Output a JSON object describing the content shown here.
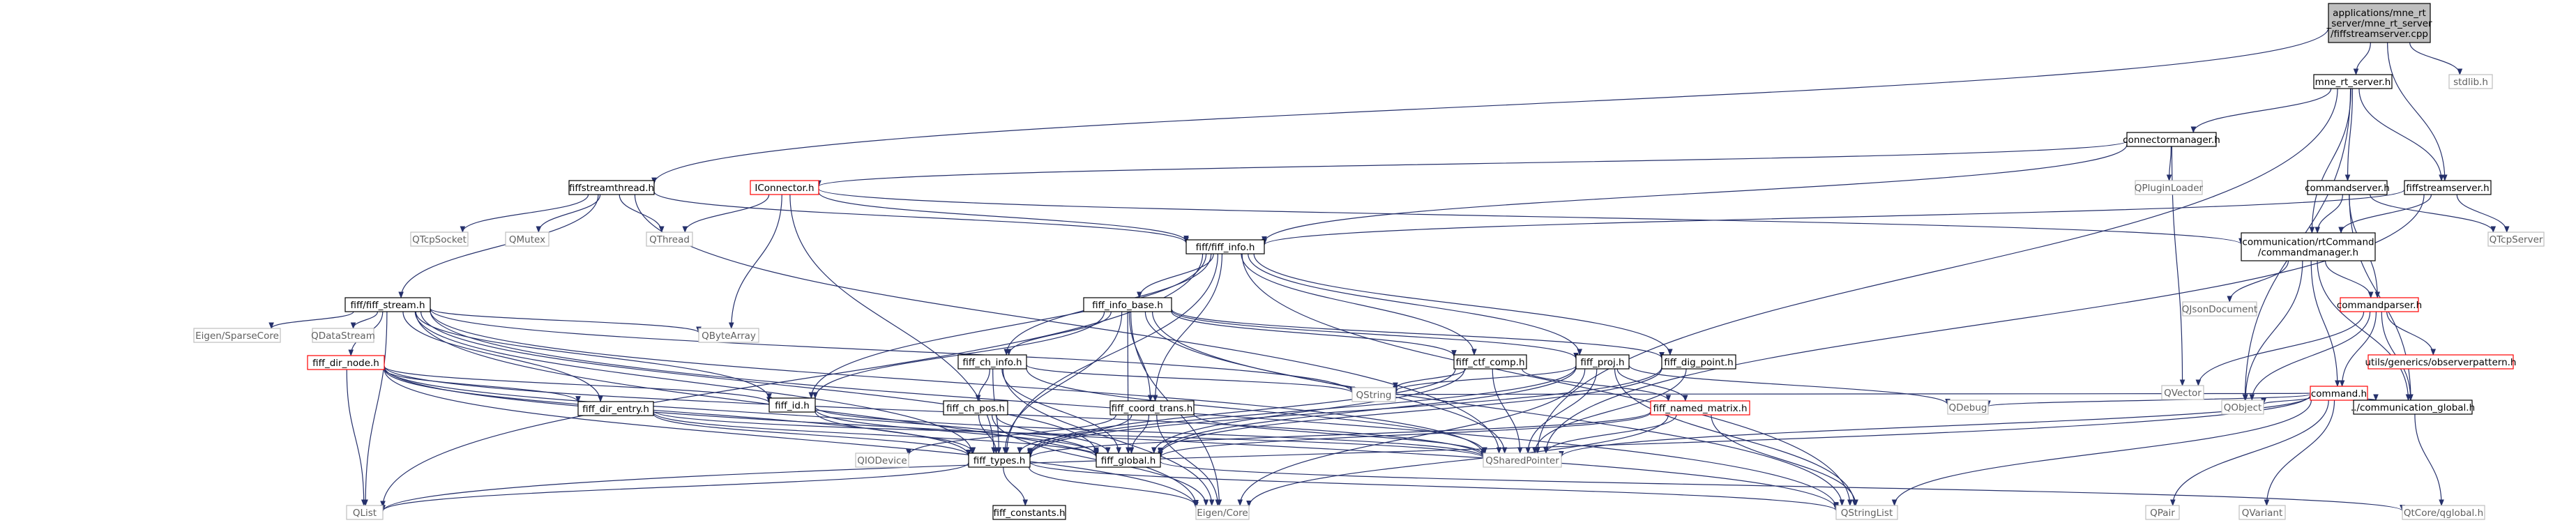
{
  "graph": {
    "nodes": [
      {
        "id": "root",
        "lines": [
          "applications/mne_rt",
          "_server/mne_rt_server",
          "/fiffstreamserver.cpp"
        ],
        "kind": "root"
      },
      {
        "id": "mne_rt_server",
        "lines": [
          "mne_rt_server.h"
        ],
        "kind": "normal"
      },
      {
        "id": "stdlib",
        "lines": [
          "stdlib.h"
        ],
        "kind": "external"
      },
      {
        "id": "connectormanager",
        "lines": [
          "connectormanager.h"
        ],
        "kind": "normal"
      },
      {
        "id": "fiffstreamthread",
        "lines": [
          "fiffstreamthread.h"
        ],
        "kind": "normal"
      },
      {
        "id": "iconnector",
        "lines": [
          "IConnector.h"
        ],
        "kind": "truncated"
      },
      {
        "id": "qpluginloader",
        "lines": [
          "QPluginLoader"
        ],
        "kind": "external"
      },
      {
        "id": "commandserver",
        "lines": [
          "commandserver.h"
        ],
        "kind": "normal"
      },
      {
        "id": "fiffstreamserver",
        "lines": [
          "fiffstreamserver.h"
        ],
        "kind": "normal"
      },
      {
        "id": "qtcpsocket",
        "lines": [
          "QTcpSocket"
        ],
        "kind": "external"
      },
      {
        "id": "qmutex",
        "lines": [
          "QMutex"
        ],
        "kind": "external"
      },
      {
        "id": "qthread",
        "lines": [
          "QThread"
        ],
        "kind": "external"
      },
      {
        "id": "fiff_info",
        "lines": [
          "fiff/fiff_info.h"
        ],
        "kind": "normal"
      },
      {
        "id": "commandmanager",
        "lines": [
          "communication/rtCommand",
          "/commandmanager.h"
        ],
        "kind": "normal"
      },
      {
        "id": "qtcpserver",
        "lines": [
          "QTcpServer"
        ],
        "kind": "external"
      },
      {
        "id": "fiff_stream",
        "lines": [
          "fiff/fiff_stream.h"
        ],
        "kind": "normal"
      },
      {
        "id": "fiff_info_base",
        "lines": [
          "fiff_info_base.h"
        ],
        "kind": "normal"
      },
      {
        "id": "qjsondocument",
        "lines": [
          "QJsonDocument"
        ],
        "kind": "external"
      },
      {
        "id": "commandparser",
        "lines": [
          "commandparser.h"
        ],
        "kind": "truncated"
      },
      {
        "id": "eigensparse",
        "lines": [
          "Eigen/SparseCore"
        ],
        "kind": "external"
      },
      {
        "id": "qdatastream",
        "lines": [
          "QDataStream"
        ],
        "kind": "external"
      },
      {
        "id": "qbytearray",
        "lines": [
          "QByteArray"
        ],
        "kind": "external"
      },
      {
        "id": "fiff_dir_node",
        "lines": [
          "fiff_dir_node.h"
        ],
        "kind": "truncated"
      },
      {
        "id": "fiff_ch_info",
        "lines": [
          "fiff_ch_info.h"
        ],
        "kind": "normal"
      },
      {
        "id": "fiff_ctf_comp",
        "lines": [
          "fiff_ctf_comp.h"
        ],
        "kind": "normal"
      },
      {
        "id": "fiff_proj",
        "lines": [
          "fiff_proj.h"
        ],
        "kind": "normal"
      },
      {
        "id": "fiff_dig_point",
        "lines": [
          "fiff_dig_point.h"
        ],
        "kind": "normal"
      },
      {
        "id": "utils_observer",
        "lines": [
          "utils/generics/observerpattern.h"
        ],
        "kind": "truncated"
      },
      {
        "id": "qvector",
        "lines": [
          "QVector"
        ],
        "kind": "external"
      },
      {
        "id": "command",
        "lines": [
          "command.h"
        ],
        "kind": "truncated"
      },
      {
        "id": "qstring",
        "lines": [
          "QString"
        ],
        "kind": "external"
      },
      {
        "id": "fiff_id",
        "lines": [
          "fiff_id.h"
        ],
        "kind": "normal"
      },
      {
        "id": "fiff_dir_entry",
        "lines": [
          "fiff_dir_entry.h"
        ],
        "kind": "normal"
      },
      {
        "id": "fiff_ch_pos",
        "lines": [
          "fiff_ch_pos.h"
        ],
        "kind": "normal"
      },
      {
        "id": "fiff_coord_trans",
        "lines": [
          "fiff_coord_trans.h"
        ],
        "kind": "normal"
      },
      {
        "id": "fiff_named_matrix",
        "lines": [
          "fiff_named_matrix.h"
        ],
        "kind": "truncated"
      },
      {
        "id": "qdebug",
        "lines": [
          "QDebug"
        ],
        "kind": "external"
      },
      {
        "id": "qobject",
        "lines": [
          "QObject"
        ],
        "kind": "external"
      },
      {
        "id": "communication_global",
        "lines": [
          "../communication_global.h"
        ],
        "kind": "normal"
      },
      {
        "id": "qiodevice",
        "lines": [
          "QIODevice"
        ],
        "kind": "external"
      },
      {
        "id": "fiff_global",
        "lines": [
          "fiff_global.h"
        ],
        "kind": "normal"
      },
      {
        "id": "qsharedpointer",
        "lines": [
          "QSharedPointer"
        ],
        "kind": "external"
      },
      {
        "id": "fiff_types",
        "lines": [
          "fiff_types.h"
        ],
        "kind": "normal"
      },
      {
        "id": "qlist",
        "lines": [
          "QList"
        ],
        "kind": "external"
      },
      {
        "id": "fiff_constants",
        "lines": [
          "fiff_constants.h"
        ],
        "kind": "normal"
      },
      {
        "id": "eigencore",
        "lines": [
          "Eigen/Core"
        ],
        "kind": "external"
      },
      {
        "id": "qstringlist",
        "lines": [
          "QStringList"
        ],
        "kind": "external"
      },
      {
        "id": "qpair",
        "lines": [
          "QPair"
        ],
        "kind": "external"
      },
      {
        "id": "qvariant",
        "lines": [
          "QVariant"
        ],
        "kind": "external"
      },
      {
        "id": "qtcore_global",
        "lines": [
          "QtCore/qglobal.h"
        ],
        "kind": "external"
      }
    ],
    "edges": [
      [
        "root",
        "mne_rt_server"
      ],
      [
        "root",
        "stdlib"
      ],
      [
        "root",
        "fiffstreamthread"
      ],
      [
        "root",
        "fiffstreamserver"
      ],
      [
        "mne_rt_server",
        "connectormanager"
      ],
      [
        "mne_rt_server",
        "commandserver"
      ],
      [
        "mne_rt_server",
        "fiffstreamserver"
      ],
      [
        "mne_rt_server",
        "commandmanager"
      ],
      [
        "mne_rt_server",
        "qobject"
      ],
      [
        "mne_rt_server",
        "qsharedpointer"
      ],
      [
        "connectormanager",
        "iconnector"
      ],
      [
        "connectormanager",
        "qpluginloader"
      ],
      [
        "connectormanager",
        "qvector"
      ],
      [
        "connectormanager",
        "fiff_info"
      ],
      [
        "fiffstreamthread",
        "qtcpsocket"
      ],
      [
        "fiffstreamthread",
        "qmutex"
      ],
      [
        "fiffstreamthread",
        "qthread"
      ],
      [
        "fiffstreamthread",
        "fiff_info"
      ],
      [
        "fiffstreamthread",
        "fiff_stream"
      ],
      [
        "fiffstreamthread",
        "qsharedpointer"
      ],
      [
        "iconnector",
        "qthread"
      ],
      [
        "iconnector",
        "fiff_info"
      ],
      [
        "iconnector",
        "commandmanager"
      ],
      [
        "iconnector",
        "qbytearray"
      ],
      [
        "iconnector",
        "fiff_types"
      ],
      [
        "commandserver",
        "commandmanager"
      ],
      [
        "commandserver",
        "commandparser"
      ],
      [
        "commandserver",
        "qtcpserver"
      ],
      [
        "commandserver",
        "communication_global"
      ],
      [
        "fiffstreamserver",
        "fiff_info"
      ],
      [
        "fiffstreamserver",
        "commandmanager"
      ],
      [
        "fiffstreamserver",
        "qtcpserver"
      ],
      [
        "fiffstreamserver",
        "qsharedpointer"
      ],
      [
        "fiff_info",
        "fiff_info_base"
      ],
      [
        "fiff_info",
        "fiff_ch_info"
      ],
      [
        "fiff_info",
        "fiff_ctf_comp"
      ],
      [
        "fiff_info",
        "fiff_proj"
      ],
      [
        "fiff_info",
        "fiff_dig_point"
      ],
      [
        "fiff_info",
        "fiff_coord_trans"
      ],
      [
        "fiff_info",
        "fiff_id"
      ],
      [
        "fiff_info",
        "fiff_types"
      ],
      [
        "fiff_info",
        "qlist"
      ],
      [
        "fiff_info",
        "qstringlist"
      ],
      [
        "commandmanager",
        "qjsondocument"
      ],
      [
        "commandmanager",
        "commandparser"
      ],
      [
        "commandmanager",
        "command"
      ],
      [
        "commandmanager",
        "qobject"
      ],
      [
        "commandmanager",
        "communication_global"
      ],
      [
        "fiff_stream",
        "eigensparse"
      ],
      [
        "fiff_stream",
        "qdatastream"
      ],
      [
        "fiff_stream",
        "qbytearray"
      ],
      [
        "fiff_stream",
        "fiff_dir_node"
      ],
      [
        "fiff_stream",
        "fiff_dir_entry"
      ],
      [
        "fiff_stream",
        "fiff_id"
      ],
      [
        "fiff_stream",
        "fiff_types"
      ],
      [
        "fiff_stream",
        "qstring"
      ],
      [
        "fiff_stream",
        "qlist"
      ],
      [
        "fiff_stream",
        "qstringlist"
      ],
      [
        "fiff_stream",
        "eigencore"
      ],
      [
        "fiff_stream",
        "fiff_global"
      ],
      [
        "fiff_stream",
        "qsharedpointer"
      ],
      [
        "fiff_info_base",
        "fiff_ch_info"
      ],
      [
        "fiff_info_base",
        "fiff_ctf_comp"
      ],
      [
        "fiff_info_base",
        "fiff_proj"
      ],
      [
        "fiff_info_base",
        "fiff_dig_point"
      ],
      [
        "fiff_info_base",
        "fiff_coord_trans"
      ],
      [
        "fiff_info_base",
        "fiff_id"
      ],
      [
        "fiff_info_base",
        "fiff_types"
      ],
      [
        "fiff_info_base",
        "fiff_global"
      ],
      [
        "fiff_info_base",
        "qsharedpointer"
      ],
      [
        "fiff_info_base",
        "eigencore"
      ],
      [
        "fiff_info_base",
        "qstringlist"
      ],
      [
        "commandparser",
        "utils_observer"
      ],
      [
        "commandparser",
        "qvector"
      ],
      [
        "commandparser",
        "command"
      ],
      [
        "commandparser",
        "qobject"
      ],
      [
        "commandparser",
        "communication_global"
      ],
      [
        "fiff_dir_node",
        "fiff_dir_entry"
      ],
      [
        "fiff_dir_node",
        "fiff_id"
      ],
      [
        "fiff_dir_node",
        "fiff_types"
      ],
      [
        "fiff_dir_node",
        "fiff_global"
      ],
      [
        "fiff_dir_node",
        "qlist"
      ],
      [
        "fiff_dir_node",
        "qsharedpointer"
      ],
      [
        "fiff_dir_node",
        "eigencore"
      ],
      [
        "fiff_dir_node",
        "qstringlist"
      ],
      [
        "fiff_ch_info",
        "fiff_ch_pos"
      ],
      [
        "fiff_ch_info",
        "fiff_types"
      ],
      [
        "fiff_ch_info",
        "fiff_global"
      ],
      [
        "fiff_ch_info",
        "qstring"
      ],
      [
        "fiff_ch_info",
        "qsharedpointer"
      ],
      [
        "fiff_ch_info",
        "eigencore"
      ],
      [
        "fiff_ctf_comp",
        "fiff_named_matrix"
      ],
      [
        "fiff_ctf_comp",
        "fiff_types"
      ],
      [
        "fiff_ctf_comp",
        "fiff_global"
      ],
      [
        "fiff_ctf_comp",
        "qsharedpointer"
      ],
      [
        "fiff_ctf_comp",
        "qstring"
      ],
      [
        "fiff_proj",
        "fiff_named_matrix"
      ],
      [
        "fiff_proj",
        "fiff_types"
      ],
      [
        "fiff_proj",
        "fiff_global"
      ],
      [
        "fiff_proj",
        "qstring"
      ],
      [
        "fiff_proj",
        "qsharedpointer"
      ],
      [
        "fiff_proj",
        "eigencore"
      ],
      [
        "fiff_proj",
        "qdebug"
      ],
      [
        "fiff_proj",
        "qstringlist"
      ],
      [
        "fiff_dig_point",
        "fiff_types"
      ],
      [
        "fiff_dig_point",
        "fiff_global"
      ],
      [
        "fiff_dig_point",
        "qsharedpointer"
      ],
      [
        "command",
        "qdebug"
      ],
      [
        "command",
        "qobject"
      ],
      [
        "command",
        "communication_global"
      ],
      [
        "command",
        "qsharedpointer"
      ],
      [
        "command",
        "qstring"
      ],
      [
        "command",
        "qstringlist"
      ],
      [
        "command",
        "qpair"
      ],
      [
        "command",
        "qvariant"
      ],
      [
        "command",
        "qlist"
      ],
      [
        "fiff_id",
        "fiff_types"
      ],
      [
        "fiff_id",
        "fiff_global"
      ],
      [
        "fiff_id",
        "qsharedpointer"
      ],
      [
        "fiff_dir_entry",
        "fiff_types"
      ],
      [
        "fiff_dir_entry",
        "fiff_global"
      ],
      [
        "fiff_dir_entry",
        "qsharedpointer"
      ],
      [
        "fiff_ch_pos",
        "fiff_types"
      ],
      [
        "fiff_ch_pos",
        "fiff_global"
      ],
      [
        "fiff_ch_pos",
        "eigencore"
      ],
      [
        "fiff_coord_trans",
        "fiff_types"
      ],
      [
        "fiff_coord_trans",
        "fiff_global"
      ],
      [
        "fiff_coord_trans",
        "eigencore"
      ],
      [
        "fiff_coord_trans",
        "qiodevice"
      ],
      [
        "fiff_coord_trans",
        "qsharedpointer"
      ],
      [
        "fiff_named_matrix",
        "fiff_types"
      ],
      [
        "fiff_named_matrix",
        "fiff_global"
      ],
      [
        "fiff_named_matrix",
        "qstringlist"
      ],
      [
        "fiff_named_matrix",
        "qsharedpointer"
      ],
      [
        "fiff_named_matrix",
        "eigencore"
      ],
      [
        "communication_global",
        "qtcore_global"
      ],
      [
        "fiff_types",
        "fiff_constants"
      ],
      [
        "fiff_types",
        "eigencore"
      ],
      [
        "fiff_types",
        "qlist"
      ],
      [
        "fiff_types",
        "qstringlist"
      ],
      [
        "fiff_global",
        "qtcore_global"
      ]
    ]
  }
}
